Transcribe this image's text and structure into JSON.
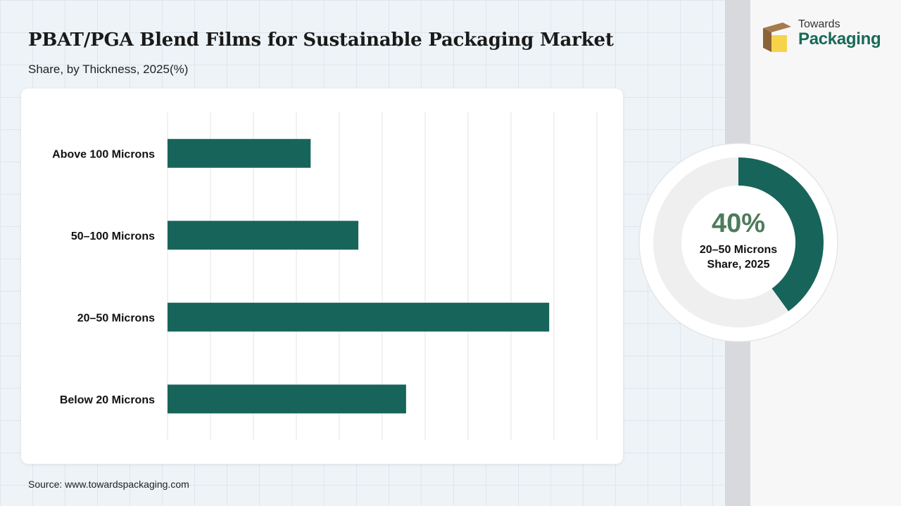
{
  "header": {
    "title": "PBAT/PGA Blend Films for Sustainable Packaging Market",
    "subtitle": "Share, by Thickness, 2025(%)"
  },
  "logo": {
    "line1": "Towards",
    "line2": "Packaging",
    "icon": "box-icon"
  },
  "colors": {
    "bar": "#17645a",
    "donut_fill": "#17645a",
    "donut_track": "#efefef",
    "donut_value_text": "#4d7b5c",
    "logo_text": "#176a56"
  },
  "chart_data": {
    "type": "bar",
    "orientation": "horizontal",
    "categories": [
      "Above 100 Microns",
      "50–100 Microns",
      "20–50 Microns",
      "Below 20 Microns"
    ],
    "values": [
      15,
      20,
      40,
      25
    ],
    "xlim": [
      0,
      45
    ],
    "grid": true,
    "gridline_count": 10
  },
  "donut": {
    "value": 40,
    "value_label": "40%",
    "line1": "20–50 Microns",
    "line2": "Share, 2025"
  },
  "footer": {
    "source": "Source: www.towardspackaging.com"
  }
}
